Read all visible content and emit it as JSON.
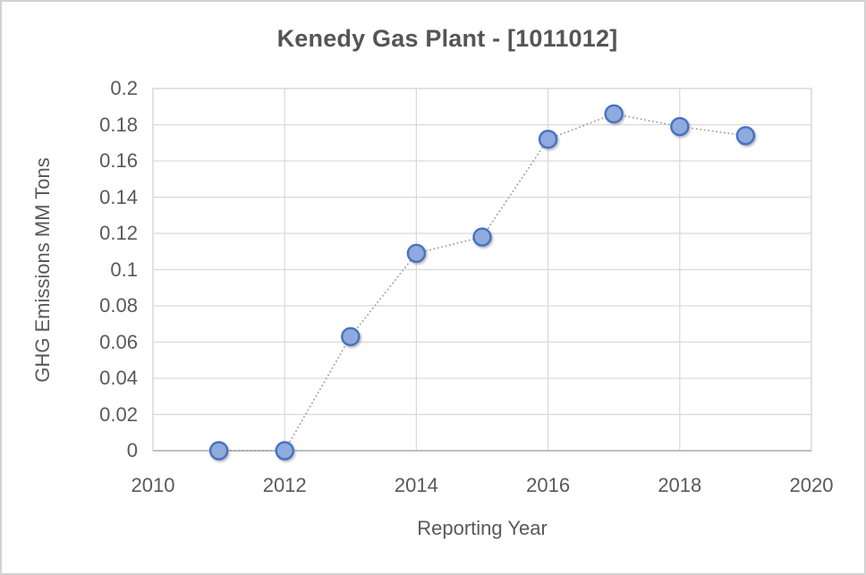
{
  "window": {
    "background_color": "#ffffff",
    "border_color": "#d2d2d2"
  },
  "chart_data": {
    "type": "scatter",
    "title": "Kenedy Gas Plant - [1011012]",
    "xlabel": "Reporting Year",
    "ylabel": "GHG Emissions MM Tons",
    "x": [
      2011,
      2012,
      2013,
      2014,
      2015,
      2016,
      2017,
      2018,
      2019
    ],
    "values": [
      0.0,
      0.0,
      0.063,
      0.109,
      0.118,
      0.172,
      0.186,
      0.179,
      0.174
    ],
    "xlim": [
      2010,
      2020
    ],
    "ylim": [
      0,
      0.2
    ],
    "x_tick_labels": [
      "2010",
      "2012",
      "2014",
      "2016",
      "2018",
      "2020"
    ],
    "x_tick_values": [
      2010,
      2012,
      2014,
      2016,
      2018,
      2020
    ],
    "y_tick_labels": [
      "0.2",
      "0.18",
      "0.16",
      "0.14",
      "0.12",
      "0.1",
      "0.08",
      "0.06",
      "0.04",
      "0.02",
      "0"
    ],
    "y_tick_values": [
      0.2,
      0.18,
      0.16,
      0.14,
      0.12,
      0.1,
      0.08,
      0.06,
      0.04,
      0.02,
      0
    ],
    "grid": true,
    "legend": "none",
    "line_style": "dotted",
    "colors": {
      "marker_fill": "#8FAADC",
      "marker_stroke": "#4472C4",
      "connector_line": "#a3a3a3",
      "gridline": "#d9d9d9",
      "plot_border": "#d9d9d9",
      "axis_line": "#bfbfbf",
      "text": "#595959"
    }
  }
}
